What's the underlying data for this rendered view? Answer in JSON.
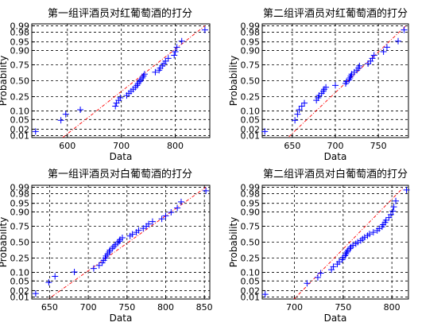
{
  "chart_data": [
    {
      "type": "scatter",
      "title": "第一组评酒员对红葡萄酒的打分",
      "xlabel": "Data",
      "ylabel": "Probability",
      "x_ticks": [
        600,
        700,
        800
      ],
      "y_ticks": [
        0.01,
        0.02,
        0.05,
        0.1,
        0.25,
        0.5,
        0.75,
        0.9,
        0.95,
        0.98,
        0.99
      ],
      "y_tick_labels": [
        "0.01",
        "0.02",
        "0.05",
        "0.10",
        "0.25",
        "0.50",
        "0.75",
        "0.90",
        "0.95",
        "0.98",
        "0.99"
      ],
      "xlim": [
        534,
        864
      ],
      "y_scale": "normal-probability",
      "grid": true,
      "series": [
        {
          "x": [
            541,
            588,
            597,
            624,
            689,
            691,
            695,
            698,
            710,
            714,
            718,
            722,
            726,
            729,
            731,
            734,
            736,
            739,
            741,
            743,
            763,
            770,
            772,
            776,
            779,
            782,
            787,
            798,
            800,
            803,
            812,
            855
          ]
        }
      ],
      "reference_line": {
        "x": [
          560,
          855
        ],
        "p": [
          0.0015,
          0.99
        ]
      }
    },
    {
      "type": "scatter",
      "title": "第二组评酒员对红葡萄酒的打分",
      "xlabel": "Data",
      "ylabel": "Probability",
      "x_ticks": [
        650,
        700,
        750
      ],
      "y_ticks": [
        0.01,
        0.02,
        0.05,
        0.1,
        0.25,
        0.5,
        0.75,
        0.9,
        0.95,
        0.98,
        0.99
      ],
      "y_tick_labels": [
        "0.01",
        "0.02",
        "0.05",
        "0.10",
        "0.25",
        "0.50",
        "0.75",
        "0.90",
        "0.95",
        "0.98",
        "0.99"
      ],
      "xlim": [
        615,
        785
      ],
      "y_scale": "normal-probability",
      "grid": true,
      "series": [
        {
          "x": [
            618,
            653,
            656,
            658,
            661,
            664,
            678,
            680,
            681,
            684,
            686,
            687,
            689,
            700,
            712,
            713,
            716,
            717,
            718,
            719,
            722,
            725,
            727,
            728,
            738,
            741,
            743,
            745,
            756,
            760,
            773,
            780
          ]
        }
      ],
      "reference_line": {
        "x": [
          640,
          782
        ],
        "p": [
          0.005,
          0.99
        ]
      }
    },
    {
      "type": "scatter",
      "title": "第一组评酒员对白葡萄酒的打分",
      "xlabel": "Data",
      "ylabel": "Probability",
      "x_ticks": [
        650,
        700,
        750,
        800,
        850
      ],
      "y_ticks": [
        0.01,
        0.02,
        0.05,
        0.1,
        0.25,
        0.5,
        0.75,
        0.9,
        0.95,
        0.98,
        0.99
      ],
      "y_tick_labels": [
        "0.01",
        "0.02",
        "0.05",
        "0.10",
        "0.25",
        "0.50",
        "0.75",
        "0.90",
        "0.95",
        "0.98",
        "0.99"
      ],
      "xlim": [
        627,
        857
      ],
      "y_scale": "normal-probability",
      "grid": true,
      "series": [
        {
          "x": [
            632,
            649,
            657,
            682,
            707,
            714,
            718,
            720,
            722,
            723,
            725,
            727,
            728,
            731,
            733,
            735,
            738,
            740,
            741,
            744,
            754,
            757,
            762,
            765,
            771,
            775,
            778,
            783,
            795,
            800,
            807,
            815,
            820,
            852
          ]
        }
      ],
      "reference_line": {
        "x": [
          638,
          852
        ],
        "p": [
          0.004,
          0.99
        ]
      }
    },
    {
      "type": "scatter",
      "title": "第二组评酒员对白葡萄酒的打分",
      "xlabel": "Data",
      "ylabel": "Probability",
      "x_ticks": [
        700,
        750,
        800
      ],
      "y_ticks": [
        0.01,
        0.02,
        0.05,
        0.1,
        0.25,
        0.5,
        0.75,
        0.9,
        0.95,
        0.98,
        0.99
      ],
      "y_tick_labels": [
        "0.01",
        "0.02",
        "0.05",
        "0.10",
        "0.25",
        "0.50",
        "0.75",
        "0.90",
        "0.95",
        "0.98",
        "0.99"
      ],
      "xlim": [
        667,
        817
      ],
      "y_scale": "normal-probability",
      "grid": true,
      "series": [
        {
          "x": [
            670,
            713,
            724,
            727,
            738,
            740,
            744,
            746,
            749,
            750,
            752,
            753,
            754,
            755,
            757,
            758,
            760,
            763,
            765,
            768,
            770,
            772,
            775,
            777,
            781,
            785,
            787,
            790,
            791,
            793,
            794,
            797,
            799,
            801,
            802,
            804,
            815
          ]
        }
      ],
      "reference_line": {
        "x": [
          694,
          812
        ],
        "p": [
          0.004,
          0.99
        ]
      }
    }
  ]
}
